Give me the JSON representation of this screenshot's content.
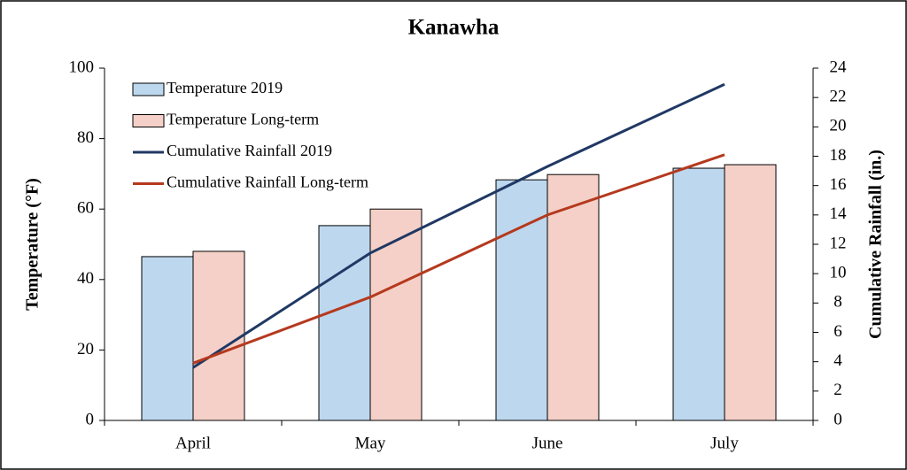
{
  "chart_data": {
    "type": "bar",
    "title": "Kanawha",
    "y_label": "Temperature (°F)",
    "y2_label": "Cumulative Rainfall (in.)",
    "categories": [
      "April",
      "May",
      "June",
      "July"
    ],
    "series": [
      {
        "name": "Temperature 2019",
        "type": "bar",
        "color": "#bdd7ee",
        "values": [
          46.5,
          55.3,
          68.3,
          71.6
        ]
      },
      {
        "name": "Temperature Long-term",
        "type": "bar",
        "color": "#f5d0c8",
        "values": [
          48,
          60,
          69.8,
          72.6
        ]
      },
      {
        "name": "Cumulative Rainfall 2019",
        "type": "line",
        "axis": "y2",
        "color": "#203864",
        "values": [
          3.6,
          11.4,
          17.3,
          22.9
        ]
      },
      {
        "name": "Cumulative Rainfall Long-term",
        "type": "line",
        "axis": "y2",
        "color": "#b5391e",
        "values": [
          3.9,
          8.4,
          14.0,
          18.1
        ]
      }
    ],
    "ylim": [
      0,
      100
    ],
    "yticks": [
      0,
      20,
      40,
      60,
      80,
      100
    ],
    "y2lim": [
      0,
      24
    ],
    "y2ticks": [
      0,
      2,
      4,
      6,
      8,
      10,
      12,
      14,
      16,
      18,
      20,
      22,
      24
    ],
    "legend": "top-left",
    "grid": false
  }
}
